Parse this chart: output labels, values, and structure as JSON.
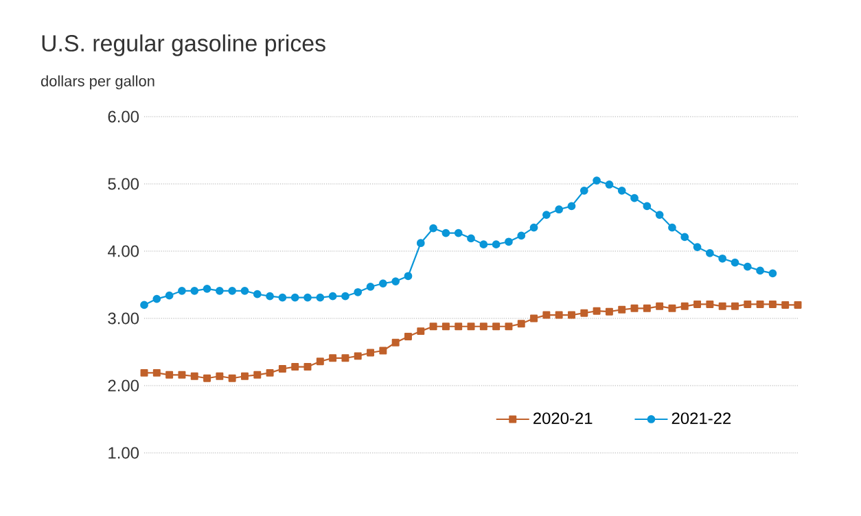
{
  "chart_data": {
    "type": "line",
    "title": "U.S. regular gasoline prices",
    "ylabel": "dollars per gallon",
    "categories": [
      null,
      null,
      null,
      null,
      null,
      null,
      null,
      null,
      null,
      null,
      null,
      null,
      null,
      null,
      null,
      null,
      null,
      null,
      null,
      null,
      null,
      null,
      null,
      null,
      null,
      null,
      null,
      null,
      null,
      null,
      null,
      null,
      null,
      null,
      null,
      null,
      null,
      null,
      null,
      null,
      null,
      null,
      null,
      null,
      null,
      null,
      null,
      null,
      null,
      null,
      null,
      null,
      null
    ],
    "series": [
      {
        "name": "2020-21",
        "color": "#c0602a",
        "marker": "square",
        "values": [
          2.19,
          2.19,
          2.16,
          2.16,
          2.14,
          2.11,
          2.14,
          2.11,
          2.14,
          2.16,
          2.19,
          2.25,
          2.28,
          2.28,
          2.36,
          2.41,
          2.41,
          2.44,
          2.49,
          2.52,
          2.64,
          2.73,
          2.81,
          2.88,
          2.88,
          2.88,
          2.88,
          2.88,
          2.88,
          2.88,
          2.92,
          3.0,
          3.05,
          3.05,
          3.05,
          3.08,
          3.11,
          3.1,
          3.13,
          3.15,
          3.15,
          3.18,
          3.15,
          3.18,
          3.21,
          3.21,
          3.18,
          3.18,
          3.21,
          3.21,
          3.21,
          3.2,
          3.2
        ]
      },
      {
        "name": "2021-22",
        "color": "#0a96d8",
        "marker": "circle",
        "values": [
          3.2,
          3.29,
          3.34,
          3.41,
          3.41,
          3.44,
          3.41,
          3.41,
          3.41,
          3.36,
          3.33,
          3.31,
          3.31,
          3.31,
          3.31,
          3.33,
          3.33,
          3.39,
          3.47,
          3.52,
          3.55,
          3.63,
          4.12,
          4.34,
          4.27,
          4.27,
          4.19,
          4.1,
          4.1,
          4.14,
          4.23,
          4.35,
          4.54,
          4.62,
          4.67,
          4.9,
          5.05,
          4.99,
          4.9,
          4.79,
          4.67,
          4.54,
          4.35,
          4.21,
          4.06,
          3.97,
          3.89,
          3.83,
          3.77,
          3.71,
          3.67,
          null,
          null
        ]
      }
    ],
    "ylim": [
      1,
      6
    ],
    "yticks": [
      {
        "value": 1,
        "label": "1.00"
      },
      {
        "value": 2,
        "label": "2.00"
      },
      {
        "value": 3,
        "label": "3.00"
      },
      {
        "value": 4,
        "label": "4.00"
      },
      {
        "value": 5,
        "label": "5.00"
      },
      {
        "value": 6,
        "label": "6.00"
      }
    ],
    "grid": "y",
    "legend": "bottom",
    "tick_labels": "y"
  }
}
